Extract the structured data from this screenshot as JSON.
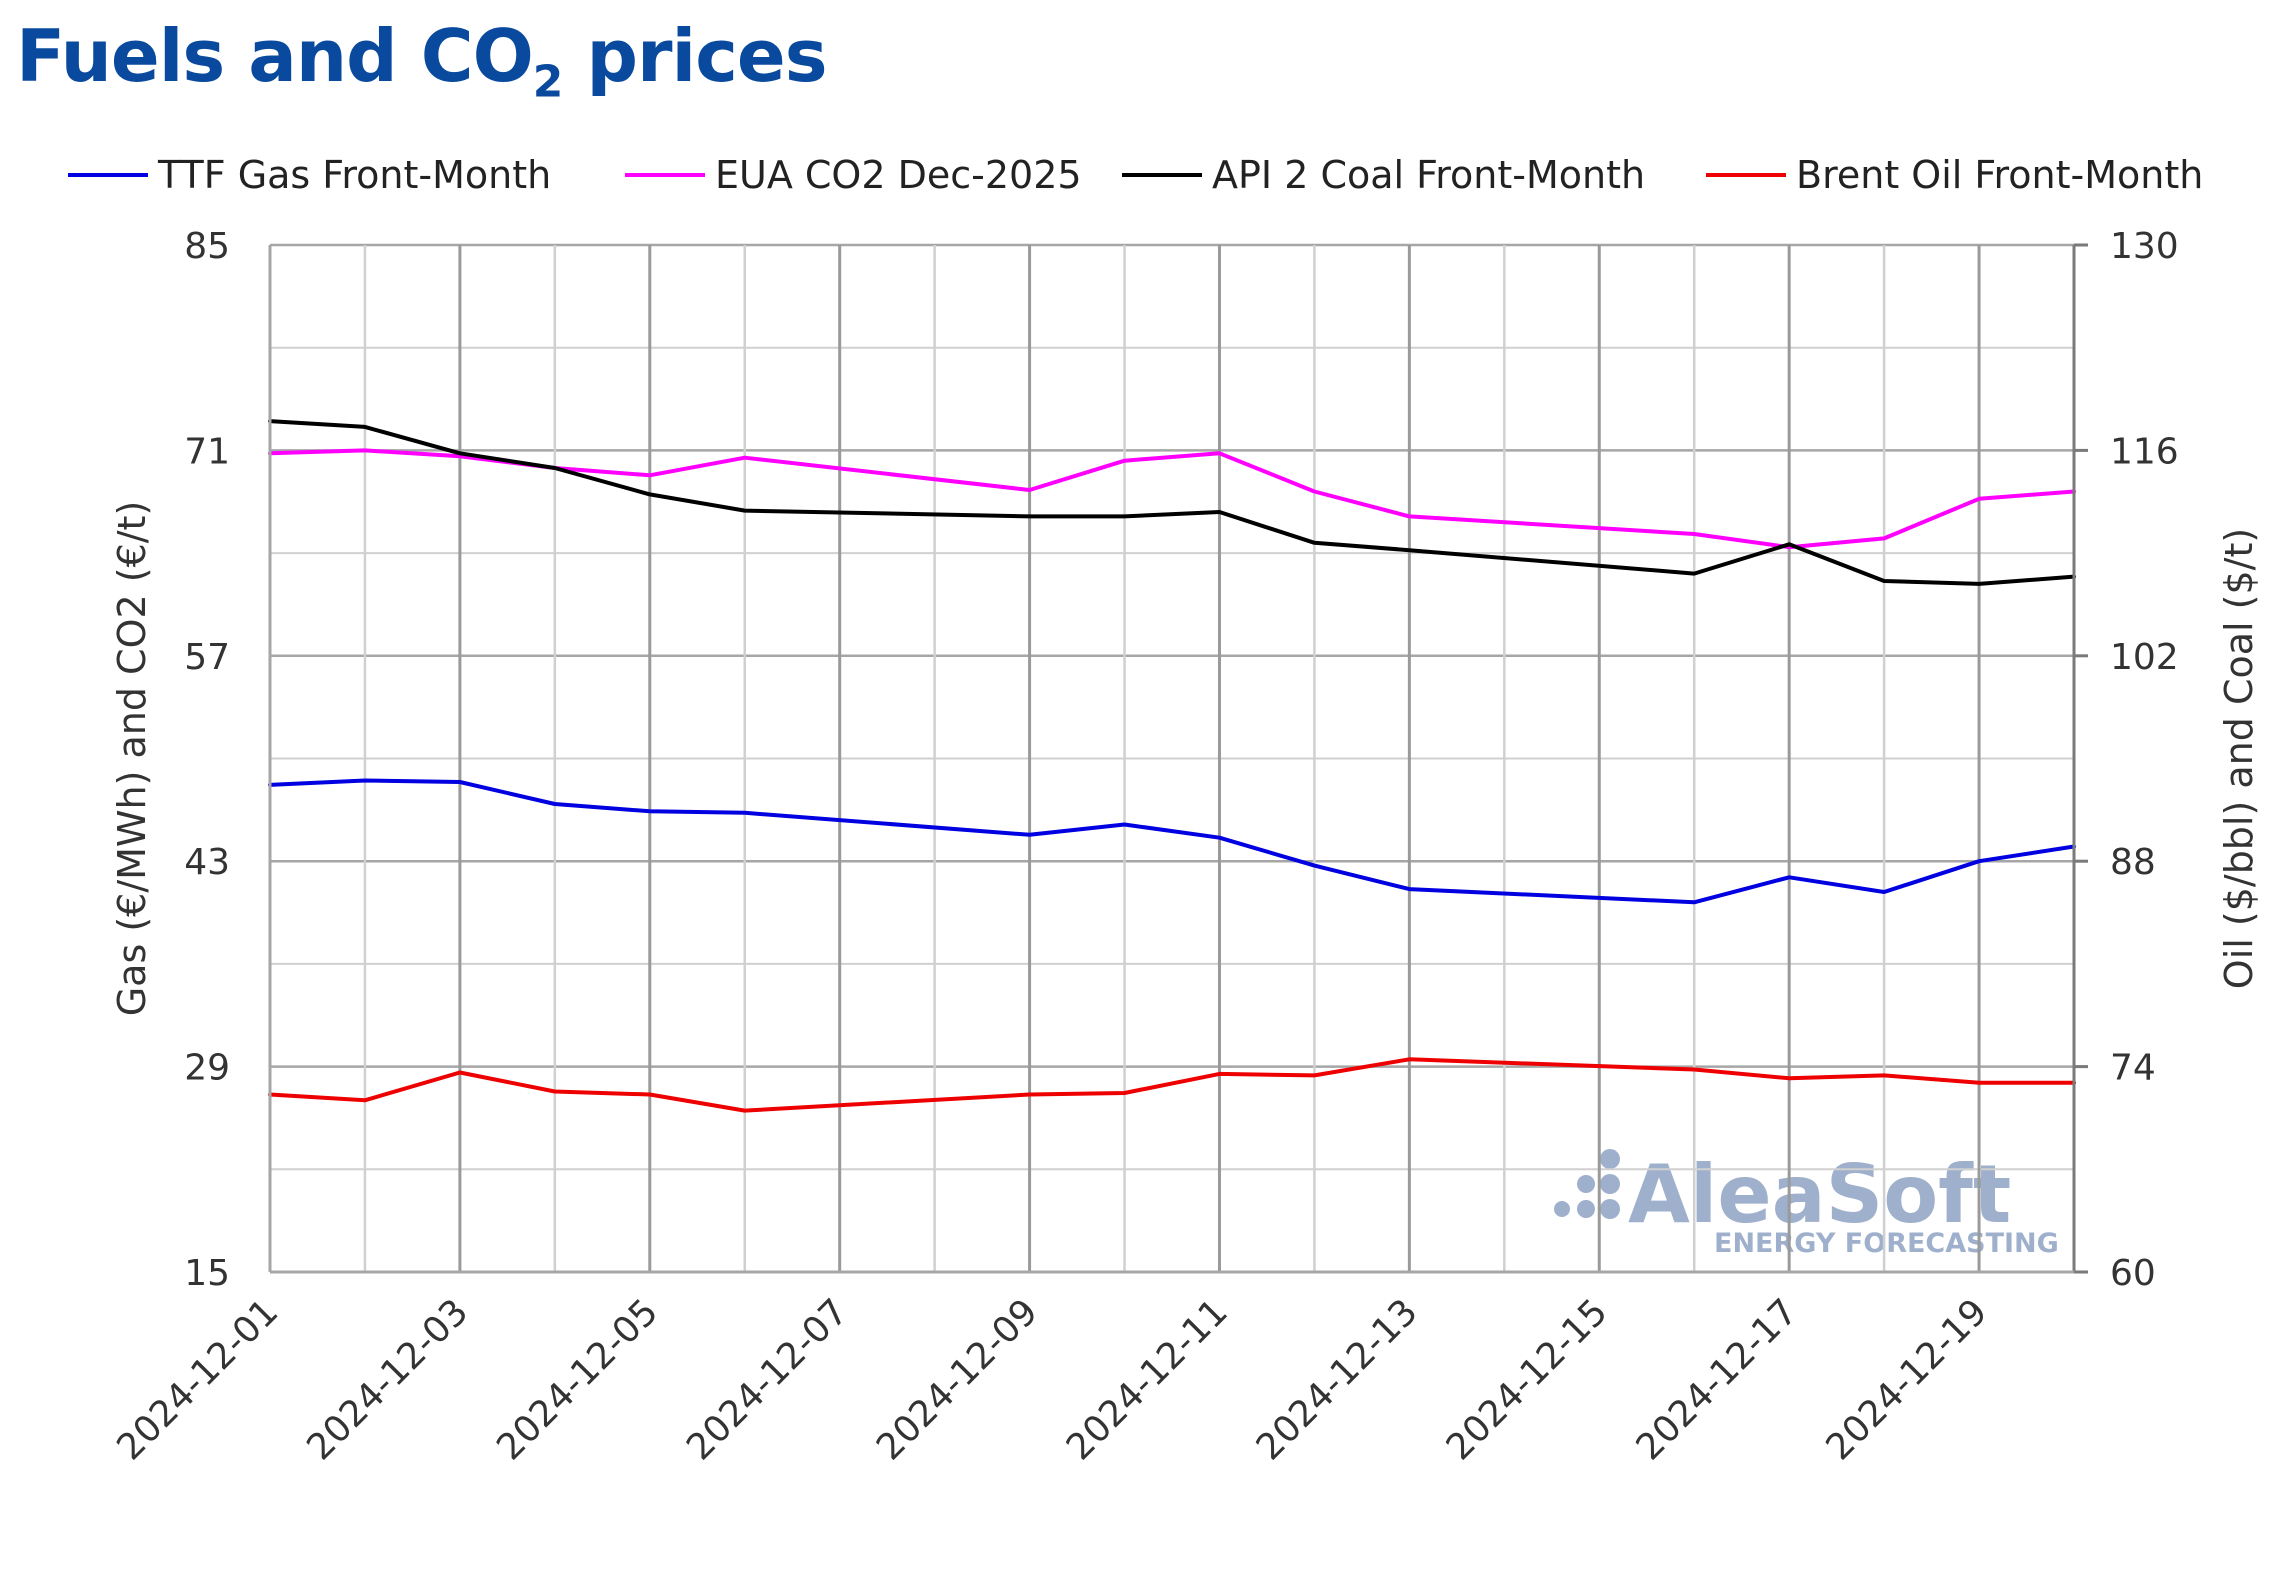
{
  "title": {
    "main": "Fuels and CO",
    "sub": "2",
    "tail": " prices"
  },
  "watermark": {
    "brand": "AleaSoft",
    "tagline": "ENERGY FORECASTING"
  },
  "chart_data": {
    "type": "line",
    "title": "Fuels and CO2 prices",
    "x": [
      "2024-12-01",
      "2024-12-02",
      "2024-12-03",
      "2024-12-04",
      "2024-12-05",
      "2024-12-06",
      "2024-12-09",
      "2024-12-10",
      "2024-12-11",
      "2024-12-12",
      "2024-12-13",
      "2024-12-16",
      "2024-12-17",
      "2024-12-18",
      "2024-12-19",
      "2024-12-20"
    ],
    "xticks": [
      "2024-12-01",
      "2024-12-03",
      "2024-12-05",
      "2024-12-07",
      "2024-12-09",
      "2024-12-11",
      "2024-12-13",
      "2024-12-15",
      "2024-12-17",
      "2024-12-19"
    ],
    "xlim": [
      "2024-12-01",
      "2024-12-20"
    ],
    "ylabel_left": "Gas (€/MWh) and CO2 (€/t)",
    "ylabel_right": "Oil ($/bbl) and Coal ($/t)",
    "ylim_left": [
      15,
      85
    ],
    "ylim_right": [
      60,
      130
    ],
    "yticks_left": [
      15,
      29,
      43,
      57,
      71,
      85
    ],
    "yticks_right": [
      60,
      74,
      88,
      102,
      116,
      130
    ],
    "grid": true,
    "legend_position": "top",
    "series": [
      {
        "name": "TTF Gas Front-Month",
        "axis": "left",
        "color": "#0000e0",
        "values": [
          48.2,
          48.5,
          48.4,
          46.9,
          46.4,
          46.3,
          44.8,
          45.5,
          44.6,
          42.7,
          41.1,
          40.2,
          41.9,
          40.9,
          43.0,
          44.0
        ]
      },
      {
        "name": "EUA CO2 Dec-2025",
        "axis": "left",
        "color": "#ff00ff",
        "values": [
          70.8,
          71.0,
          70.6,
          69.8,
          69.3,
          70.5,
          68.3,
          70.3,
          70.8,
          68.2,
          66.5,
          65.3,
          64.4,
          65.0,
          67.7,
          68.2
        ]
      },
      {
        "name": "API 2 Coal Front-Month",
        "axis": "right",
        "color": "#000000",
        "values": [
          118.0,
          117.6,
          115.8,
          114.8,
          113.0,
          111.9,
          111.5,
          111.5,
          111.8,
          109.7,
          109.2,
          107.6,
          109.6,
          107.1,
          106.9,
          107.4
        ]
      },
      {
        "name": "Brent Oil Front-Month",
        "axis": "right",
        "color": "#ee0000",
        "values": [
          72.1,
          71.7,
          73.6,
          72.3,
          72.1,
          71.0,
          72.1,
          72.2,
          73.5,
          73.4,
          74.5,
          73.8,
          73.2,
          73.4,
          72.9,
          72.9
        ]
      }
    ]
  }
}
